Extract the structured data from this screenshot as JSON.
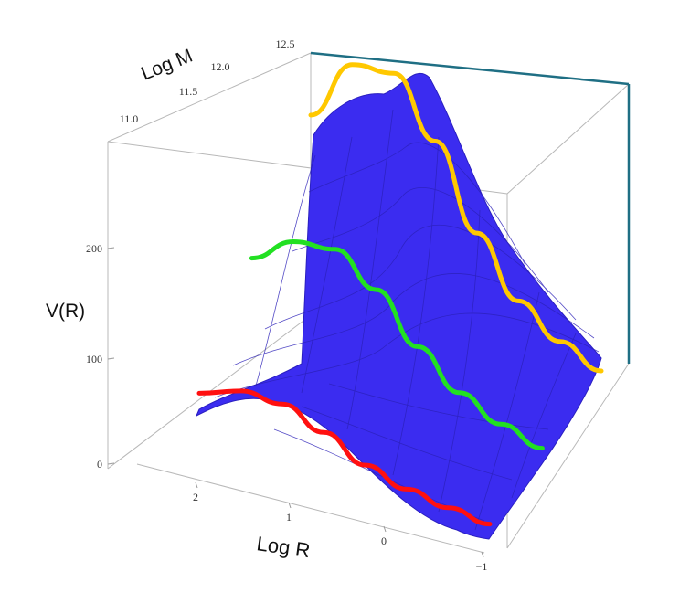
{
  "chart_data": {
    "type": "surface",
    "title": "",
    "xlabel": "Log R",
    "ylabel": "Log M",
    "zlabel": "V(R)",
    "x_ticks": [
      "2",
      "1",
      "0",
      "-1"
    ],
    "y_ticks": [
      "11.0",
      "11.5",
      "12.0",
      "12.5"
    ],
    "z_ticks": [
      "0",
      "100",
      "200"
    ],
    "xlim": [
      -1,
      2.5
    ],
    "ylim": [
      10.8,
      12.5
    ],
    "zlim": [
      0,
      290
    ],
    "surface_color": "#3b2cf0",
    "series": [
      {
        "color": "#ff1010",
        "log_m": 10.8,
        "log_r": [
          2.5,
          2.0,
          1.5,
          1.0,
          0.5,
          0.0,
          -0.5,
          -1.0
        ],
        "v": [
          48,
          62,
          62,
          48,
          30,
          20,
          15,
          12
        ]
      },
      {
        "color": "#22e022",
        "log_m": 11.6,
        "log_r": [
          2.5,
          2.0,
          1.5,
          1.0,
          0.5,
          0.0,
          -0.5,
          -1.0
        ],
        "v": [
          128,
          155,
          160,
          135,
          95,
          65,
          48,
          38
        ]
      },
      {
        "color": "#ffc800",
        "log_m": 12.5,
        "log_r": [
          2.5,
          2.0,
          1.5,
          1.0,
          0.5,
          0.0,
          -0.5,
          -1.0
        ],
        "v": [
          210,
          268,
          272,
          222,
          150,
          100,
          75,
          60
        ]
      }
    ]
  }
}
